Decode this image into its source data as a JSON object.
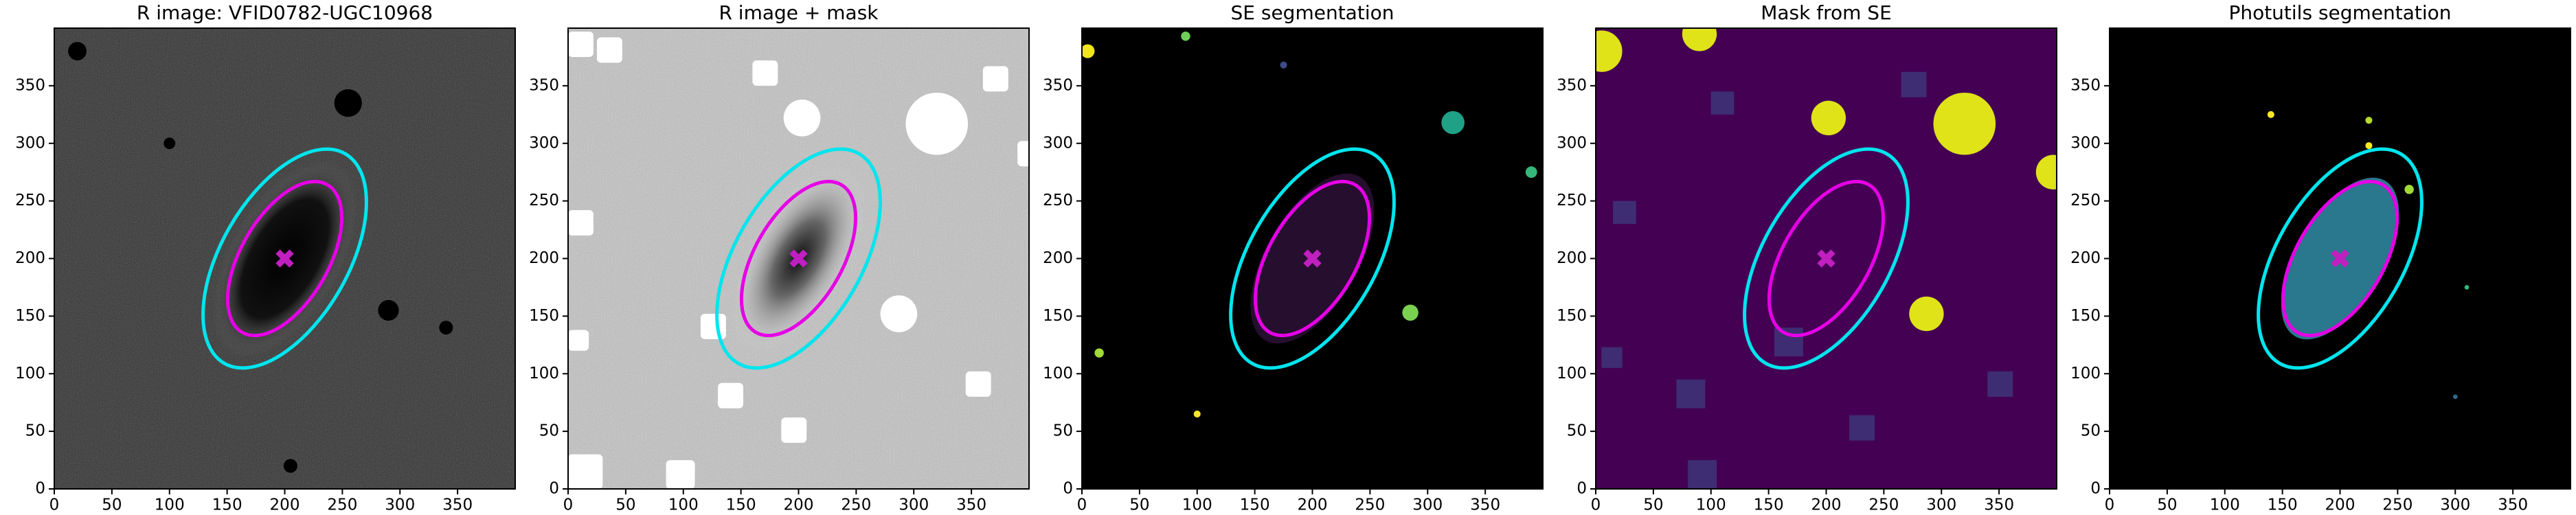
{
  "chart_data": [
    {
      "type": "image",
      "title": "R image: VFID0782-UGC10968",
      "background": "#6e6e6e",
      "xlim": [
        0,
        400
      ],
      "ylim": [
        0,
        400
      ],
      "xticks": [
        0,
        50,
        100,
        150,
        200,
        250,
        300,
        350
      ],
      "yticks": [
        0,
        50,
        100,
        150,
        200,
        250,
        300,
        350
      ],
      "ellipses": [
        {
          "color": "#00e5ee",
          "x": 200,
          "y": 200,
          "a": 105,
          "b": 55,
          "angle": 60
        },
        {
          "color": "#e600e6",
          "x": 200,
          "y": 200,
          "a": 74,
          "b": 38,
          "angle": 60
        }
      ],
      "center": {
        "x": 200,
        "y": 200,
        "color": "#c020c0"
      }
    },
    {
      "type": "image",
      "title": "R image + mask",
      "background": "#dcdcdc",
      "xlim": [
        0,
        400
      ],
      "ylim": [
        0,
        400
      ],
      "xticks": [
        0,
        50,
        100,
        150,
        200,
        250,
        300,
        350
      ],
      "yticks": [
        0,
        50,
        100,
        150,
        200,
        250,
        300,
        350
      ],
      "ellipses": [
        {
          "color": "#00e5ee",
          "x": 200,
          "y": 200,
          "a": 105,
          "b": 55,
          "angle": 60
        },
        {
          "color": "#e600e6",
          "x": 200,
          "y": 200,
          "a": 74,
          "b": 38,
          "angle": 60
        }
      ],
      "center": {
        "x": 200,
        "y": 200,
        "color": "#c020c0"
      }
    },
    {
      "type": "image",
      "title": "SE segmentation",
      "background": "#000000",
      "xlim": [
        0,
        400
      ],
      "ylim": [
        0,
        400
      ],
      "xticks": [
        0,
        50,
        100,
        150,
        200,
        250,
        300,
        350
      ],
      "yticks": [
        0,
        50,
        100,
        150,
        200,
        250,
        300,
        350
      ],
      "ellipses": [
        {
          "color": "#00e5ee",
          "x": 200,
          "y": 200,
          "a": 105,
          "b": 55,
          "angle": 60
        },
        {
          "color": "#e600e6",
          "x": 200,
          "y": 200,
          "a": 74,
          "b": 38,
          "angle": 60
        }
      ],
      "center": {
        "x": 200,
        "y": 200,
        "color": "#c020c0"
      }
    },
    {
      "type": "image",
      "title": "Mask from SE",
      "background": "#440154",
      "xlim": [
        0,
        400
      ],
      "ylim": [
        0,
        400
      ],
      "xticks": [
        0,
        50,
        100,
        150,
        200,
        250,
        300,
        350
      ],
      "yticks": [
        0,
        50,
        100,
        150,
        200,
        250,
        300,
        350
      ],
      "ellipses": [
        {
          "color": "#00e5ee",
          "x": 200,
          "y": 200,
          "a": 105,
          "b": 55,
          "angle": 60
        },
        {
          "color": "#e600e6",
          "x": 200,
          "y": 200,
          "a": 74,
          "b": 38,
          "angle": 60
        }
      ],
      "center": {
        "x": 200,
        "y": 200,
        "color": "#c020c0"
      }
    },
    {
      "type": "image",
      "title": "Photutils segmentation",
      "background": "#000000",
      "xlim": [
        0,
        400
      ],
      "ylim": [
        0,
        400
      ],
      "xticks": [
        0,
        50,
        100,
        150,
        200,
        250,
        300,
        350
      ],
      "yticks": [
        0,
        50,
        100,
        150,
        200,
        250,
        300,
        350
      ],
      "ellipses": [
        {
          "color": "#00e5ee",
          "x": 200,
          "y": 200,
          "a": 105,
          "b": 55,
          "angle": 60
        },
        {
          "color": "#e600e6",
          "x": 200,
          "y": 200,
          "a": 74,
          "b": 38,
          "angle": 60
        }
      ],
      "center": {
        "x": 200,
        "y": 200,
        "color": "#c020c0"
      }
    }
  ]
}
